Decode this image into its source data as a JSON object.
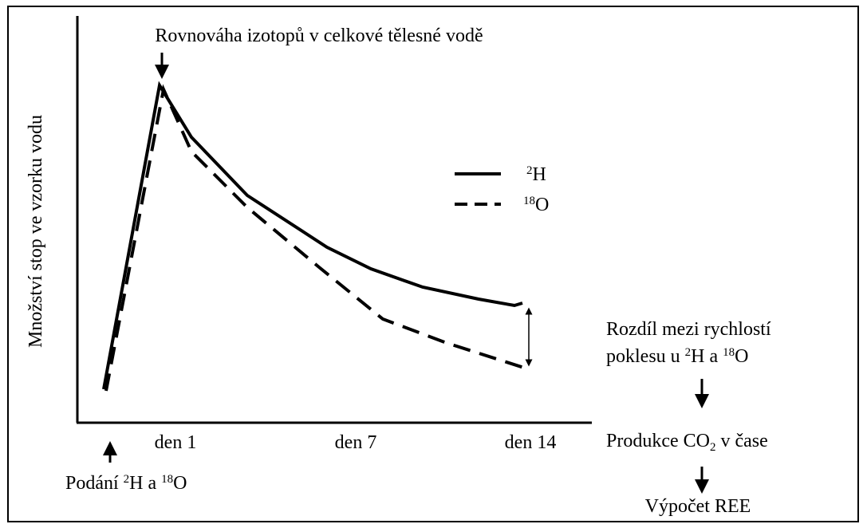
{
  "title": "Rovnováha izotopů v celkové tělesné vodě",
  "y_axis_label": "Množství stop ve vzorku vodu",
  "x_labels": [
    "den 1",
    "den 7",
    "den 14"
  ],
  "legend": [
    {
      "sup": "2",
      "text": "H"
    },
    {
      "sup": "18",
      "text": "O"
    }
  ],
  "start_note": {
    "before": "Podání ",
    "sup1": "2",
    "mid": "H a ",
    "sup2": "18",
    "after": "O"
  },
  "difference_note": {
    "line1": "Rozdíl mezi rychlostí",
    "before": "poklesu u ",
    "sup1": "2",
    "mid": "H a ",
    "sup2": "18",
    "after": "O"
  },
  "production": {
    "before": "Produkce CO",
    "sub": "2",
    "after": " v čase"
  },
  "result": "Výpočet REE"
}
